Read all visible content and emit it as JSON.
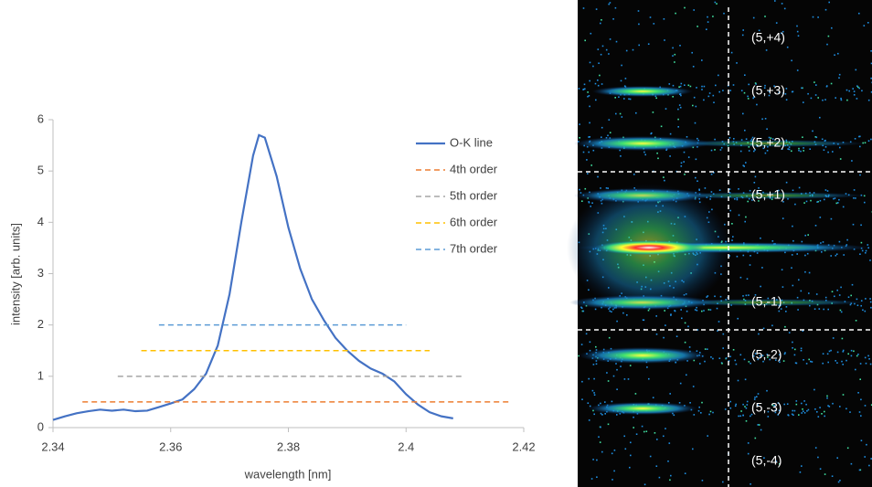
{
  "chart_data": {
    "type": "line",
    "xlabel": "wavelength [nm]",
    "ylabel": "intensity [arb. units]",
    "xlim": [
      2.34,
      2.42
    ],
    "xticks": [
      2.34,
      2.36,
      2.38,
      2.4,
      2.42
    ],
    "ylim": [
      0,
      6
    ],
    "yticks": [
      0,
      1,
      2,
      3,
      4,
      5,
      6
    ],
    "grid": false,
    "legend": "upper right",
    "series": [
      {
        "name": "O-K line",
        "color": "#4472c4",
        "dashed": false,
        "x": [
          2.34,
          2.342,
          2.344,
          2.346,
          2.348,
          2.35,
          2.352,
          2.354,
          2.356,
          2.358,
          2.36,
          2.362,
          2.364,
          2.366,
          2.368,
          2.37,
          2.372,
          2.374,
          2.375,
          2.376,
          2.378,
          2.38,
          2.382,
          2.384,
          2.386,
          2.388,
          2.39,
          2.392,
          2.394,
          2.396,
          2.398,
          2.4,
          2.402,
          2.404,
          2.406,
          2.408
        ],
        "values": [
          0.15,
          0.22,
          0.28,
          0.32,
          0.35,
          0.33,
          0.35,
          0.32,
          0.33,
          0.4,
          0.47,
          0.55,
          0.75,
          1.05,
          1.6,
          2.6,
          4.0,
          5.3,
          5.7,
          5.65,
          4.9,
          3.9,
          3.1,
          2.5,
          2.1,
          1.75,
          1.5,
          1.3,
          1.15,
          1.05,
          0.9,
          0.65,
          0.45,
          0.3,
          0.22,
          0.18
        ]
      },
      {
        "name": "4th order",
        "color": "#ed7d31",
        "dashed": true,
        "x": [
          2.345,
          2.418
        ],
        "values": [
          0.5,
          0.5
        ]
      },
      {
        "name": "5th order",
        "color": "#a5a5a5",
        "dashed": true,
        "x": [
          2.351,
          2.41
        ],
        "values": [
          1,
          1
        ]
      },
      {
        "name": "6th order",
        "color": "#ffc000",
        "dashed": true,
        "x": [
          2.355,
          2.404
        ],
        "values": [
          1.5,
          1.5
        ]
      },
      {
        "name": "7th order",
        "color": "#5b9bd5",
        "dashed": true,
        "x": [
          2.358,
          2.4
        ],
        "values": [
          2,
          2
        ]
      }
    ]
  },
  "detector_image": {
    "labels": [
      "(5,+4)",
      "(5,+3)",
      "(5,+2)",
      "(5,+1)",
      "(5,-1)",
      "(5,-2)",
      "(5,-3)",
      "(5,-4)"
    ]
  }
}
